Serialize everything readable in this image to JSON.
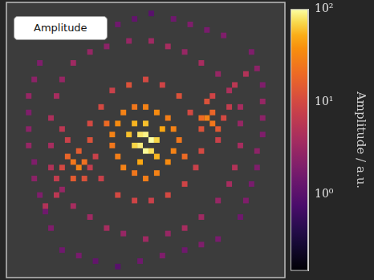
{
  "chart_data": {
    "type": "heatmap",
    "series": [
      {
        "name": "Amplitude",
        "cells": [
          [
            48,
            52,
            80
          ],
          [
            50,
            52,
            90
          ],
          [
            52,
            50,
            100
          ],
          [
            46,
            48,
            70
          ],
          [
            48,
            48,
            85
          ],
          [
            50,
            46,
            95
          ],
          [
            52,
            46,
            75
          ],
          [
            54,
            50,
            70
          ],
          [
            44,
            52,
            60
          ],
          [
            50,
            56,
            60
          ],
          [
            46,
            56,
            55
          ],
          [
            54,
            44,
            55
          ],
          [
            48,
            42,
            50
          ],
          [
            56,
            54,
            50
          ],
          [
            38,
            52,
            30
          ],
          [
            38,
            48,
            25
          ],
          [
            40,
            56,
            35
          ],
          [
            42,
            60,
            30
          ],
          [
            46,
            62,
            25
          ],
          [
            50,
            62,
            30
          ],
          [
            54,
            60,
            35
          ],
          [
            58,
            58,
            28
          ],
          [
            60,
            54,
            30
          ],
          [
            62,
            50,
            25
          ],
          [
            60,
            46,
            30
          ],
          [
            58,
            42,
            35
          ],
          [
            54,
            38,
            30
          ],
          [
            50,
            36,
            28
          ],
          [
            46,
            38,
            25
          ],
          [
            42,
            40,
            30
          ],
          [
            40,
            44,
            28
          ],
          [
            36,
            56,
            20
          ],
          [
            64,
            44,
            20
          ],
          [
            30,
            56,
            10
          ],
          [
            30,
            50,
            12
          ],
          [
            32,
            44,
            8
          ],
          [
            34,
            62,
            10
          ],
          [
            38,
            68,
            8
          ],
          [
            44,
            70,
            12
          ],
          [
            50,
            72,
            10
          ],
          [
            56,
            70,
            9
          ],
          [
            62,
            66,
            12
          ],
          [
            66,
            60,
            10
          ],
          [
            70,
            54,
            12
          ],
          [
            70,
            46,
            10
          ],
          [
            68,
            40,
            8
          ],
          [
            64,
            34,
            9
          ],
          [
            58,
            30,
            10
          ],
          [
            52,
            28,
            8
          ],
          [
            46,
            28,
            9
          ],
          [
            40,
            30,
            10
          ],
          [
            34,
            36,
            8
          ],
          [
            30,
            40,
            7
          ],
          [
            24,
            42,
            25
          ],
          [
            26,
            40,
            30
          ],
          [
            28,
            42,
            22
          ],
          [
            22,
            44,
            18
          ],
          [
            26,
            46,
            15
          ],
          [
            24,
            36,
            15
          ],
          [
            20,
            40,
            10
          ],
          [
            28,
            36,
            12
          ],
          [
            22,
            50,
            8
          ],
          [
            20,
            54,
            6
          ],
          [
            18,
            36,
            7
          ],
          [
            72,
            58,
            30
          ],
          [
            74,
            56,
            25
          ],
          [
            70,
            58,
            20
          ],
          [
            74,
            60,
            18
          ],
          [
            76,
            54,
            14
          ],
          [
            72,
            64,
            12
          ],
          [
            78,
            58,
            10
          ],
          [
            76,
            50,
            8
          ],
          [
            80,
            62,
            7
          ],
          [
            74,
            66,
            9
          ],
          [
            12,
            78,
            2
          ],
          [
            10,
            72,
            2.5
          ],
          [
            8,
            66,
            3
          ],
          [
            8,
            60,
            2
          ],
          [
            8,
            54,
            2.5
          ],
          [
            8,
            48,
            3
          ],
          [
            10,
            42,
            2
          ],
          [
            10,
            36,
            2.5
          ],
          [
            12,
            30,
            2
          ],
          [
            14,
            24,
            1.5
          ],
          [
            16,
            18,
            2
          ],
          [
            88,
            82,
            2
          ],
          [
            90,
            76,
            2.5
          ],
          [
            92,
            70,
            2
          ],
          [
            92,
            64,
            3
          ],
          [
            92,
            58,
            2.5
          ],
          [
            92,
            52,
            2
          ],
          [
            90,
            46,
            2.5
          ],
          [
            90,
            40,
            2
          ],
          [
            88,
            34,
            1.8
          ],
          [
            86,
            28,
            2
          ],
          [
            84,
            22,
            1.5
          ],
          [
            40,
            92,
            1.5
          ],
          [
            46,
            94,
            1.2
          ],
          [
            52,
            96,
            1
          ],
          [
            60,
            94,
            1.5
          ],
          [
            66,
            92,
            2
          ],
          [
            72,
            90,
            1.8
          ],
          [
            78,
            88,
            2
          ],
          [
            20,
            10,
            1.5
          ],
          [
            26,
            8,
            1.8
          ],
          [
            32,
            6,
            1.2
          ],
          [
            40,
            4,
            1
          ],
          [
            48,
            6,
            1.5
          ],
          [
            56,
            8,
            2
          ],
          [
            64,
            10,
            1.5
          ],
          [
            70,
            12,
            2
          ],
          [
            76,
            14,
            1.8
          ],
          [
            18,
            66,
            4
          ],
          [
            20,
            72,
            3
          ],
          [
            24,
            78,
            3.5
          ],
          [
            30,
            82,
            3
          ],
          [
            36,
            84,
            2.5
          ],
          [
            44,
            86,
            3
          ],
          [
            52,
            86,
            3.5
          ],
          [
            58,
            84,
            4
          ],
          [
            64,
            82,
            3
          ],
          [
            70,
            78,
            4
          ],
          [
            76,
            74,
            3
          ],
          [
            80,
            68,
            4.5
          ],
          [
            84,
            62,
            4
          ],
          [
            84,
            56,
            3
          ],
          [
            84,
            48,
            4
          ],
          [
            82,
            40,
            5
          ],
          [
            80,
            34,
            4
          ],
          [
            76,
            28,
            3
          ],
          [
            70,
            22,
            3.5
          ],
          [
            64,
            18,
            4
          ],
          [
            58,
            16,
            3
          ],
          [
            50,
            14,
            3.5
          ],
          [
            42,
            16,
            3
          ],
          [
            36,
            18,
            4
          ],
          [
            30,
            22,
            3.5
          ],
          [
            24,
            26,
            4
          ],
          [
            20,
            32,
            3
          ],
          [
            16,
            40,
            5
          ],
          [
            16,
            48,
            4
          ],
          [
            16,
            58,
            4.5
          ],
          [
            18,
            30,
            6
          ],
          [
            14,
            26,
            5
          ],
          [
            82,
            70,
            6
          ],
          [
            86,
            74,
            5
          ]
        ]
      }
    ],
    "cell_size": 2,
    "xlim": [
      0,
      100
    ],
    "ylim": [
      0,
      100
    ],
    "tick_labels": false,
    "legend": "upper left",
    "colorbar": {
      "label": "Amplitude / a.u.",
      "log": true,
      "range": [
        0.15,
        100
      ],
      "ticks": [
        {
          "value": 1,
          "label": "10⁰"
        },
        {
          "value": 10,
          "label": "10¹"
        },
        {
          "value": 100,
          "label": "10²"
        }
      ]
    }
  }
}
